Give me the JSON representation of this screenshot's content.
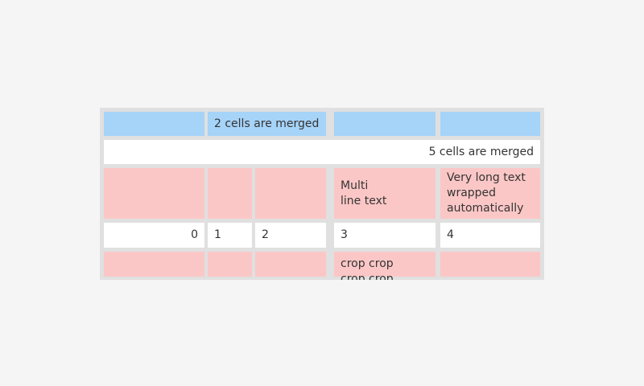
{
  "colors": {
    "page_background": "#f5f5f5",
    "table_background": "#e0e0e0",
    "header_cell": "#a6d3f8",
    "highlight_cell": "#fbc7c6",
    "default_cell": "#ffffff",
    "text": "#343434"
  },
  "table": {
    "row1": {
      "merged_label": "2 cells are merged"
    },
    "row2": {
      "merged_label": "5 cells are merged"
    },
    "row3": {
      "multiline_label": "Multi\nline text",
      "wrapped_label": "Very long text wrapped automatically"
    },
    "row4": {
      "values": [
        "0",
        "1",
        "2",
        "3",
        "4"
      ]
    },
    "row5": {
      "cropped_label": "crop crop\ncrop crop"
    }
  }
}
